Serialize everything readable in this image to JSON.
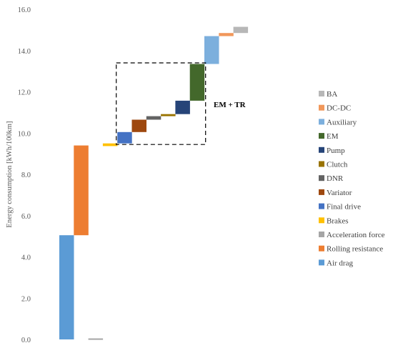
{
  "chart_data": {
    "type": "bar",
    "subtype": "waterfall",
    "ylabel": "Energy consumption [kWh/100km]",
    "ylim": [
      0,
      16
    ],
    "yticks": [
      "0.0",
      "2.0",
      "4.0",
      "6.0",
      "8.0",
      "10.0",
      "12.0",
      "14.0",
      "16.0"
    ],
    "grid": false,
    "legend_position": "right",
    "annotation": "EM + TR",
    "series": [
      {
        "name": "Air drag",
        "color": "#5b9bd5",
        "start": 0.0,
        "end": 5.05
      },
      {
        "name": "Rolling resistance",
        "color": "#ed7d31",
        "start": 5.05,
        "end": 9.4
      },
      {
        "name": "Acceleration force",
        "color": "#a5a5a5",
        "start": 0.0,
        "end": 0.03
      },
      {
        "name": "Brakes",
        "color": "#ffc000",
        "start": 9.37,
        "end": 9.5
      },
      {
        "name": "Final drive",
        "color": "#4472c4",
        "start": 9.5,
        "end": 10.05
      },
      {
        "name": "Variator",
        "color": "#9e480e",
        "start": 10.05,
        "end": 10.65
      },
      {
        "name": "DNR",
        "color": "#636363",
        "start": 10.65,
        "end": 10.82
      },
      {
        "name": "Clutch",
        "color": "#997300",
        "start": 10.82,
        "end": 10.92
      },
      {
        "name": "Pump",
        "color": "#264478",
        "start": 10.92,
        "end": 11.57
      },
      {
        "name": "EM",
        "color": "#43682b",
        "start": 11.57,
        "end": 13.35
      },
      {
        "name": "Auxiliary",
        "color": "#7cafdd",
        "start": 13.35,
        "end": 14.7
      },
      {
        "name": "DC-DC",
        "color": "#f1975a",
        "start": 14.7,
        "end": 14.85
      },
      {
        "name": "BA",
        "color": "#b7b7b7",
        "start": 14.85,
        "end": 15.15
      }
    ]
  }
}
